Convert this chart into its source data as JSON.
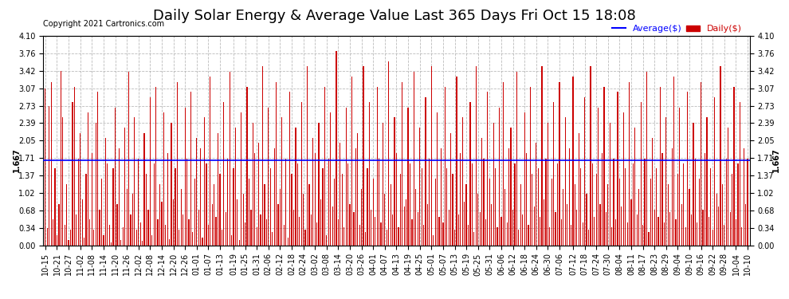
{
  "title": "Daily Solar Energy & Average Value Last 365 Days Fri Oct 15 18:08",
  "copyright": "Copyright 2021 Cartronics.com",
  "average_line": 1.667,
  "average_label": "1.667",
  "bar_color": "#cc0000",
  "line_color": "#0000ff",
  "legend_avg_label": "Average($)",
  "legend_daily_label": "Daily($)",
  "ylim": [
    0.0,
    4.1
  ],
  "yticks": [
    0.0,
    0.34,
    0.68,
    1.02,
    1.37,
    1.71,
    2.05,
    2.39,
    2.73,
    3.07,
    3.42,
    3.76,
    4.1
  ],
  "background_color": "#ffffff",
  "grid_color": "#aaaaaa",
  "title_fontsize": 13,
  "tick_fontsize": 7,
  "xtick_labels": [
    "10-15",
    "10-21",
    "10-27",
    "11-02",
    "11-08",
    "11-14",
    "11-20",
    "11-26",
    "12-02",
    "12-08",
    "12-14",
    "12-20",
    "12-26",
    "01-01",
    "01-07",
    "01-13",
    "01-19",
    "01-25",
    "01-31",
    "02-06",
    "02-12",
    "02-18",
    "02-24",
    "03-02",
    "03-08",
    "03-14",
    "03-20",
    "03-26",
    "04-01",
    "04-07",
    "04-13",
    "04-19",
    "04-25",
    "05-01",
    "05-07",
    "05-13",
    "05-19",
    "05-25",
    "05-31",
    "06-06",
    "06-12",
    "06-18",
    "06-24",
    "06-30",
    "07-06",
    "07-12",
    "07-18",
    "07-24",
    "07-30",
    "08-04",
    "08-11",
    "08-17",
    "08-23",
    "08-29",
    "09-04",
    "09-10",
    "09-16",
    "09-22",
    "09-28",
    "10-04",
    "10-10"
  ],
  "values": [
    3.07,
    0.34,
    2.73,
    3.2,
    0.5,
    1.5,
    0.2,
    0.8,
    3.42,
    2.5,
    0.4,
    1.2,
    0.1,
    0.3,
    2.8,
    3.1,
    0.6,
    1.7,
    2.2,
    0.9,
    0.15,
    1.4,
    2.6,
    0.5,
    1.8,
    0.3,
    2.4,
    3.0,
    0.7,
    1.3,
    0.2,
    2.1,
    1.6,
    0.4,
    0.05,
    1.5,
    2.7,
    0.8,
    1.9,
    0.1,
    0.35,
    2.3,
    1.1,
    3.4,
    0.6,
    1.0,
    2.5,
    0.3,
    1.7,
    0.45,
    0.08,
    2.2,
    1.4,
    0.7,
    2.9,
    0.2,
    1.6,
    3.1,
    0.5,
    1.2,
    0.85,
    2.6,
    0.4,
    1.8,
    0.12,
    2.4,
    0.9,
    1.5,
    3.2,
    0.3,
    1.1,
    0.6,
    2.7,
    1.7,
    0.5,
    3.0,
    0.25,
    1.3,
    2.1,
    0.7,
    1.9,
    0.15,
    2.5,
    1.6,
    0.4,
    3.3,
    0.8,
    1.2,
    0.55,
    2.2,
    1.4,
    0.3,
    2.8,
    0.65,
    1.7,
    3.4,
    0.2,
    1.5,
    2.3,
    0.9,
    0.1,
    2.6,
    1.0,
    0.45,
    3.1,
    1.3,
    0.7,
    2.4,
    1.8,
    0.35,
    2.0,
    0.6,
    3.5,
    1.2,
    0.5,
    2.7,
    1.5,
    0.25,
    1.9,
    3.2,
    0.8,
    1.1,
    2.5,
    0.4,
    1.7,
    0.15,
    3.0,
    1.4,
    0.7,
    2.3,
    1.6,
    0.55,
    2.8,
    1.0,
    0.3,
    3.5,
    1.2,
    0.6,
    2.1,
    1.8,
    0.45,
    2.4,
    0.9,
    1.5,
    3.1,
    0.2,
    1.7,
    2.6,
    0.75,
    1.3,
    3.8,
    0.5,
    2.0,
    1.4,
    0.35,
    2.7,
    1.6,
    0.8,
    3.3,
    0.65,
    1.9,
    2.2,
    0.4,
    1.1,
    3.5,
    0.25,
    1.5,
    2.8,
    0.7,
    1.3,
    0.55,
    3.1,
    1.7,
    0.45,
    2.4,
    1.0,
    0.3,
    3.6,
    1.2,
    0.6,
    2.5,
    1.8,
    0.35,
    1.4,
    3.2,
    0.75,
    0.9,
    2.7,
    1.6,
    0.5,
    3.4,
    1.1,
    0.65,
    2.3,
    1.5,
    0.4,
    2.9,
    0.8,
    1.7,
    3.5,
    0.2,
    1.3,
    2.6,
    0.55,
    1.9,
    0.45,
    3.1,
    1.5,
    0.7,
    2.2,
    1.4,
    0.3,
    3.3,
    0.6,
    1.8,
    2.5,
    0.85,
    1.2,
    0.4,
    2.8,
    1.6,
    0.25,
    3.5,
    1.0,
    0.65,
    2.1,
    1.7,
    0.5,
    3.0,
    1.3,
    0.8,
    2.4,
    1.5,
    0.35,
    2.7,
    0.55,
    3.2,
    1.1,
    0.45,
    1.9,
    2.3,
    0.7,
    1.6,
    3.4,
    0.3,
    1.2,
    0.6,
    2.6,
    1.8,
    0.4,
    3.1,
    1.4,
    0.75,
    2.0,
    1.5,
    0.55,
    3.5,
    0.9,
    1.7,
    2.4,
    0.35,
    1.3,
    2.8,
    0.65,
    1.6,
    3.2,
    0.5,
    1.1,
    2.5,
    0.8,
    1.9,
    0.4,
    3.3,
    1.2,
    0.7,
    2.2,
    1.5,
    0.45,
    2.9,
    1.0,
    0.3,
    3.5,
    1.6,
    0.55,
    1.4,
    2.7,
    0.8,
    1.8,
    3.1,
    0.65,
    1.2,
    2.4,
    0.35,
    1.7,
    0.5,
    3.0,
    1.3,
    0.75,
    2.6,
    1.5,
    0.45,
    3.2,
    0.9,
    1.6,
    2.3,
    0.6,
    1.1,
    2.8,
    0.4,
    1.7,
    3.4,
    0.25,
    1.3,
    2.1,
    0.7,
    1.5,
    0.55,
    3.1,
    1.8,
    0.45,
    2.5,
    1.2,
    0.65,
    1.9,
    3.3,
    0.5,
    1.4,
    2.7,
    0.8,
    1.6,
    0.35,
    3.0,
    1.1,
    0.6,
    2.4,
    1.7,
    0.45,
    1.3,
    3.2,
    0.7,
    1.8,
    2.5,
    0.55,
    1.5,
    0.3,
    2.9,
    1.0,
    0.75,
    3.5,
    1.2,
    0.4,
    1.7,
    2.3,
    0.65,
    1.4,
    3.1,
    0.5,
    1.6,
    2.8,
    0.35,
    1.9,
    0.8,
    1.7
  ]
}
